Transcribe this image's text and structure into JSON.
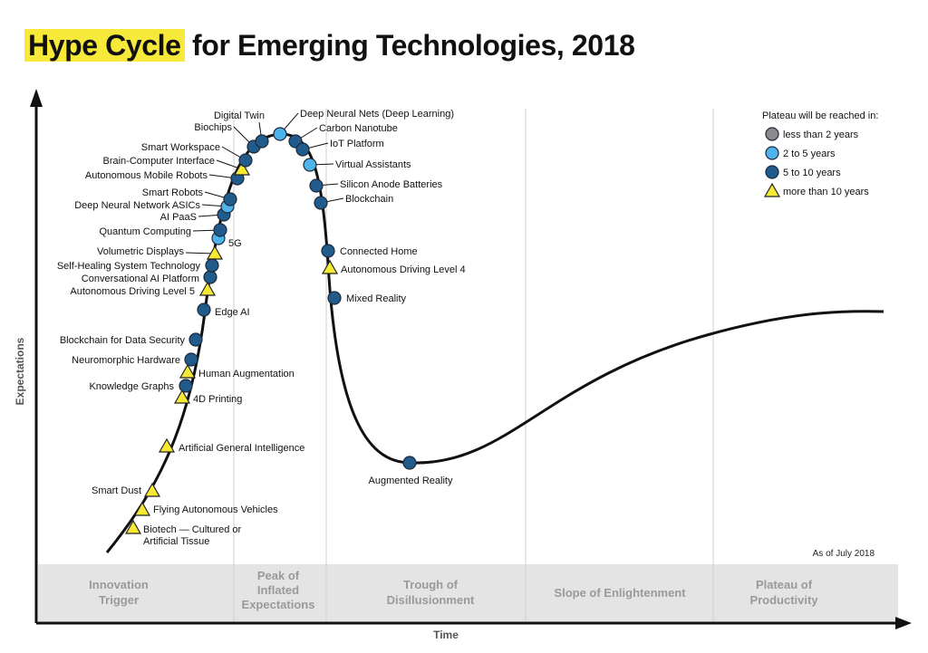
{
  "title": {
    "highlight": "Hype Cycle",
    "rest": " for Emerging Technologies, 2018"
  },
  "axes": {
    "y_label": "Expectations",
    "x_label": "Time"
  },
  "as_of": "As of July 2018",
  "colors": {
    "less_than_2_years": "#8a8a8a",
    "2_to_5_years": "#4db3ea",
    "5_to_10_years": "#215b8c",
    "more_than_10_years": "#f6e934",
    "phase_band": "#e4e4e4",
    "phase_text": "#9a9a9a",
    "title_highlight": "#f7e93a"
  },
  "legend": {
    "title": "Plateau will be reached in:",
    "items": [
      {
        "key": "less_than_2_years",
        "label": "less than 2 years",
        "marker": "circle"
      },
      {
        "key": "2_to_5_years",
        "label": "2 to 5 years",
        "marker": "circle"
      },
      {
        "key": "5_to_10_years",
        "label": "5 to 10 years",
        "marker": "circle"
      },
      {
        "key": "more_than_10_years",
        "label": "more than 10 years",
        "marker": "triangle"
      }
    ]
  },
  "phases": [
    {
      "lines": [
        "Innovation",
        "Trigger"
      ]
    },
    {
      "lines": [
        "Peak of",
        "Inflated",
        "Expectations"
      ]
    },
    {
      "lines": [
        "Trough of",
        "Disillusionment"
      ]
    },
    {
      "lines": [
        "Slope of Enlightenment"
      ]
    },
    {
      "lines": [
        "Plateau of",
        "Productivity"
      ]
    }
  ],
  "technologies": [
    {
      "name": "Biotech — Cultured or Artificial Tissue",
      "category": "more_than_10_years"
    },
    {
      "name": "Flying Autonomous Vehicles",
      "category": "more_than_10_years"
    },
    {
      "name": "Smart Dust",
      "category": "more_than_10_years"
    },
    {
      "name": "Artificial General Intelligence",
      "category": "more_than_10_years"
    },
    {
      "name": "4D Printing",
      "category": "more_than_10_years"
    },
    {
      "name": "Knowledge Graphs",
      "category": "5_to_10_years"
    },
    {
      "name": "Human Augmentation",
      "category": "more_than_10_years"
    },
    {
      "name": "Neuromorphic Hardware",
      "category": "5_to_10_years"
    },
    {
      "name": "Blockchain for Data Security",
      "category": "5_to_10_years"
    },
    {
      "name": "Edge AI",
      "category": "5_to_10_years"
    },
    {
      "name": "Autonomous Driving Level 5",
      "category": "more_than_10_years"
    },
    {
      "name": "Conversational AI Platform",
      "category": "5_to_10_years"
    },
    {
      "name": "Self-Healing System Technology",
      "category": "5_to_10_years"
    },
    {
      "name": "Volumetric Displays",
      "category": "more_than_10_years"
    },
    {
      "name": "5G",
      "category": "2_to_5_years"
    },
    {
      "name": "Quantum Computing",
      "category": "5_to_10_years"
    },
    {
      "name": "AI PaaS",
      "category": "5_to_10_years"
    },
    {
      "name": "Deep Neural Network ASICs",
      "category": "2_to_5_years"
    },
    {
      "name": "Smart Robots",
      "category": "5_to_10_years"
    },
    {
      "name": "Autonomous Mobile Robots",
      "category": "5_to_10_years"
    },
    {
      "name": "Brain-Computer Interface",
      "category": "more_than_10_years"
    },
    {
      "name": "Smart Workspace",
      "category": "5_to_10_years"
    },
    {
      "name": "Biochips",
      "category": "5_to_10_years"
    },
    {
      "name": "Digital Twin",
      "category": "5_to_10_years"
    },
    {
      "name": "Deep Neural Nets (Deep Learning)",
      "category": "2_to_5_years"
    },
    {
      "name": "Carbon Nanotube",
      "category": "5_to_10_years"
    },
    {
      "name": "IoT Platform",
      "category": "5_to_10_years"
    },
    {
      "name": "Virtual Assistants",
      "category": "2_to_5_years"
    },
    {
      "name": "Silicon Anode Batteries",
      "category": "5_to_10_years"
    },
    {
      "name": "Blockchain",
      "category": "5_to_10_years"
    },
    {
      "name": "Connected Home",
      "category": "5_to_10_years"
    },
    {
      "name": "Autonomous Driving Level 4",
      "category": "more_than_10_years"
    },
    {
      "name": "Mixed Reality",
      "category": "5_to_10_years"
    },
    {
      "name": "Augmented Reality",
      "category": "5_to_10_years"
    }
  ]
}
